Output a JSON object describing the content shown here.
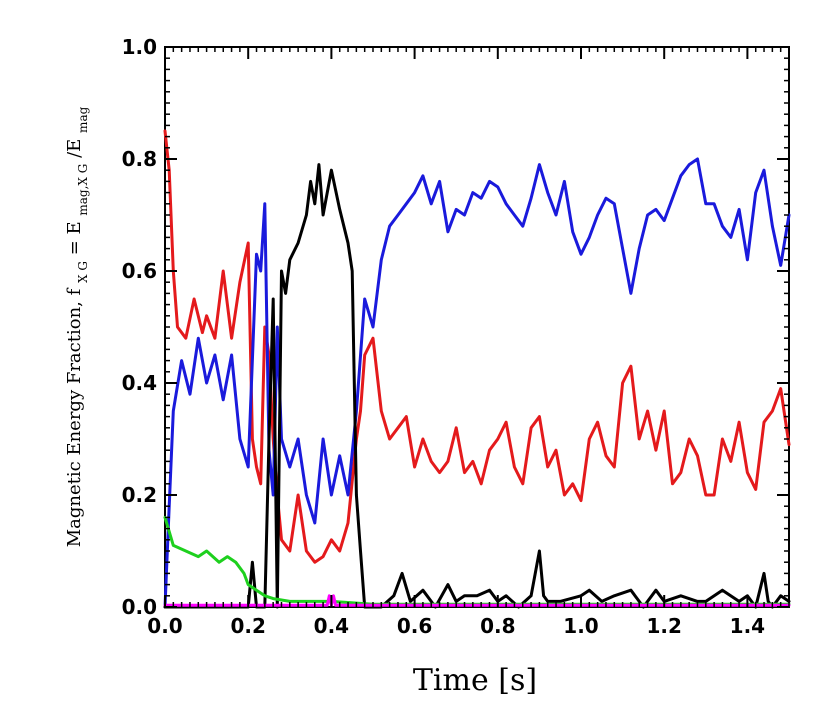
{
  "chart_data": {
    "type": "line",
    "title": "",
    "xlabel": "Time [s]",
    "ylabel": "Magnetic Energy Fraction, f",
    "ylabel_subscript": "X G",
    "ylabel_formula_tail": " = E",
    "ylabel_formula_sub": "mag,X G",
    "ylabel_formula_div": "/E",
    "ylabel_formula_sub2": "mag",
    "xlim": [
      0.0,
      1.5
    ],
    "ylim": [
      0.0,
      1.0
    ],
    "xticks": [
      "0.0",
      "0.2",
      "0.4",
      "0.6",
      "0.8",
      "1.0",
      "1.2",
      "1.4"
    ],
    "yticks": [
      "0.0",
      "0.2",
      "0.4",
      "0.6",
      "0.8",
      "1.0"
    ],
    "xtick_values": [
      0.0,
      0.2,
      0.4,
      0.6,
      0.8,
      1.0,
      1.2,
      1.4
    ],
    "ytick_values": [
      0.0,
      0.2,
      0.4,
      0.6,
      0.8,
      1.0
    ],
    "series": [
      {
        "name": "red",
        "color": "#e41a1c",
        "x": [
          0.0,
          0.01,
          0.02,
          0.03,
          0.05,
          0.07,
          0.09,
          0.1,
          0.12,
          0.14,
          0.16,
          0.18,
          0.2,
          0.21,
          0.22,
          0.23,
          0.24,
          0.25,
          0.26,
          0.27,
          0.28,
          0.3,
          0.32,
          0.34,
          0.36,
          0.38,
          0.4,
          0.42,
          0.44,
          0.46,
          0.47,
          0.48,
          0.5,
          0.52,
          0.54,
          0.56,
          0.58,
          0.6,
          0.62,
          0.64,
          0.66,
          0.68,
          0.7,
          0.72,
          0.74,
          0.76,
          0.78,
          0.8,
          0.82,
          0.84,
          0.86,
          0.88,
          0.9,
          0.92,
          0.94,
          0.96,
          0.98,
          1.0,
          1.02,
          1.04,
          1.06,
          1.08,
          1.1,
          1.12,
          1.14,
          1.16,
          1.18,
          1.2,
          1.22,
          1.24,
          1.26,
          1.28,
          1.3,
          1.32,
          1.34,
          1.36,
          1.38,
          1.4,
          1.42,
          1.44,
          1.46,
          1.48,
          1.5
        ],
        "y": [
          0.85,
          0.78,
          0.6,
          0.5,
          0.48,
          0.55,
          0.49,
          0.52,
          0.48,
          0.6,
          0.48,
          0.58,
          0.65,
          0.3,
          0.25,
          0.22,
          0.5,
          0.45,
          0.3,
          0.2,
          0.12,
          0.1,
          0.2,
          0.1,
          0.08,
          0.09,
          0.12,
          0.1,
          0.15,
          0.3,
          0.35,
          0.45,
          0.48,
          0.35,
          0.3,
          0.32,
          0.34,
          0.25,
          0.3,
          0.26,
          0.24,
          0.26,
          0.32,
          0.24,
          0.26,
          0.22,
          0.28,
          0.3,
          0.33,
          0.25,
          0.22,
          0.32,
          0.34,
          0.25,
          0.28,
          0.2,
          0.22,
          0.19,
          0.3,
          0.33,
          0.27,
          0.25,
          0.4,
          0.43,
          0.3,
          0.35,
          0.28,
          0.35,
          0.22,
          0.24,
          0.3,
          0.27,
          0.2,
          0.2,
          0.3,
          0.26,
          0.33,
          0.24,
          0.21,
          0.33,
          0.35,
          0.39,
          0.29
        ]
      },
      {
        "name": "blue",
        "color": "#1a1adc",
        "x": [
          0.0,
          0.01,
          0.02,
          0.04,
          0.06,
          0.08,
          0.1,
          0.12,
          0.14,
          0.16,
          0.18,
          0.2,
          0.22,
          0.23,
          0.24,
          0.25,
          0.26,
          0.27,
          0.28,
          0.3,
          0.32,
          0.34,
          0.36,
          0.38,
          0.4,
          0.42,
          0.44,
          0.46,
          0.48,
          0.5,
          0.52,
          0.54,
          0.56,
          0.58,
          0.6,
          0.62,
          0.64,
          0.66,
          0.68,
          0.7,
          0.72,
          0.74,
          0.76,
          0.78,
          0.8,
          0.82,
          0.84,
          0.86,
          0.88,
          0.9,
          0.92,
          0.94,
          0.96,
          0.98,
          1.0,
          1.02,
          1.04,
          1.06,
          1.08,
          1.1,
          1.12,
          1.14,
          1.16,
          1.18,
          1.2,
          1.22,
          1.24,
          1.26,
          1.28,
          1.3,
          1.32,
          1.34,
          1.36,
          1.38,
          1.4,
          1.42,
          1.44,
          1.46,
          1.48,
          1.5
        ],
        "y": [
          0.0,
          0.18,
          0.35,
          0.44,
          0.38,
          0.48,
          0.4,
          0.45,
          0.37,
          0.45,
          0.3,
          0.25,
          0.63,
          0.6,
          0.72,
          0.28,
          0.2,
          0.5,
          0.3,
          0.25,
          0.3,
          0.2,
          0.15,
          0.3,
          0.2,
          0.27,
          0.2,
          0.35,
          0.55,
          0.5,
          0.62,
          0.68,
          0.7,
          0.72,
          0.74,
          0.77,
          0.72,
          0.76,
          0.67,
          0.71,
          0.7,
          0.74,
          0.73,
          0.76,
          0.75,
          0.72,
          0.7,
          0.68,
          0.73,
          0.79,
          0.74,
          0.7,
          0.76,
          0.67,
          0.63,
          0.66,
          0.7,
          0.73,
          0.72,
          0.64,
          0.56,
          0.64,
          0.7,
          0.71,
          0.69,
          0.73,
          0.77,
          0.79,
          0.8,
          0.72,
          0.72,
          0.68,
          0.66,
          0.71,
          0.62,
          0.74,
          0.78,
          0.68,
          0.61,
          0.7
        ]
      },
      {
        "name": "black",
        "color": "#000000",
        "x": [
          0.0,
          0.05,
          0.1,
          0.15,
          0.18,
          0.2,
          0.21,
          0.22,
          0.23,
          0.24,
          0.25,
          0.26,
          0.27,
          0.28,
          0.29,
          0.3,
          0.32,
          0.34,
          0.35,
          0.36,
          0.37,
          0.38,
          0.4,
          0.42,
          0.44,
          0.45,
          0.46,
          0.47,
          0.48,
          0.5,
          0.52,
          0.55,
          0.57,
          0.59,
          0.62,
          0.65,
          0.68,
          0.7,
          0.72,
          0.75,
          0.78,
          0.8,
          0.82,
          0.85,
          0.88,
          0.9,
          0.91,
          0.92,
          0.95,
          1.0,
          1.02,
          1.05,
          1.08,
          1.12,
          1.15,
          1.18,
          1.2,
          1.24,
          1.28,
          1.3,
          1.34,
          1.38,
          1.4,
          1.42,
          1.44,
          1.45,
          1.46,
          1.48,
          1.5
        ],
        "y": [
          0.0,
          0.0,
          0.0,
          0.0,
          0.0,
          0.0,
          0.08,
          0.0,
          0.0,
          0.0,
          0.3,
          0.55,
          0.0,
          0.6,
          0.56,
          0.62,
          0.65,
          0.7,
          0.76,
          0.72,
          0.79,
          0.7,
          0.78,
          0.71,
          0.65,
          0.6,
          0.2,
          0.1,
          0.0,
          0.0,
          0.0,
          0.02,
          0.06,
          0.01,
          0.03,
          0.0,
          0.04,
          0.01,
          0.02,
          0.02,
          0.03,
          0.01,
          0.02,
          0.0,
          0.02,
          0.1,
          0.02,
          0.01,
          0.01,
          0.02,
          0.03,
          0.01,
          0.02,
          0.03,
          0.0,
          0.03,
          0.01,
          0.02,
          0.01,
          0.01,
          0.03,
          0.01,
          0.02,
          0.0,
          0.06,
          0.01,
          0.0,
          0.02,
          0.01
        ]
      },
      {
        "name": "green",
        "color": "#1ed01e",
        "x": [
          0.0,
          0.02,
          0.05,
          0.08,
          0.1,
          0.13,
          0.15,
          0.17,
          0.19,
          0.2,
          0.22,
          0.24,
          0.26,
          0.3,
          0.4,
          0.5,
          0.6,
          0.8,
          1.0,
          1.2,
          1.4,
          1.5
        ],
        "y": [
          0.16,
          0.11,
          0.1,
          0.09,
          0.1,
          0.08,
          0.09,
          0.08,
          0.06,
          0.04,
          0.03,
          0.02,
          0.015,
          0.01,
          0.01,
          0.005,
          0.005,
          0.005,
          0.005,
          0.005,
          0.005,
          0.005
        ]
      },
      {
        "name": "magenta",
        "color": "#ff00ff",
        "x": [
          0.0,
          0.39,
          0.395,
          0.4,
          0.405,
          0.41,
          1.5
        ],
        "y": [
          0.003,
          0.003,
          0.02,
          0.003,
          0.02,
          0.003,
          0.003
        ]
      }
    ]
  }
}
